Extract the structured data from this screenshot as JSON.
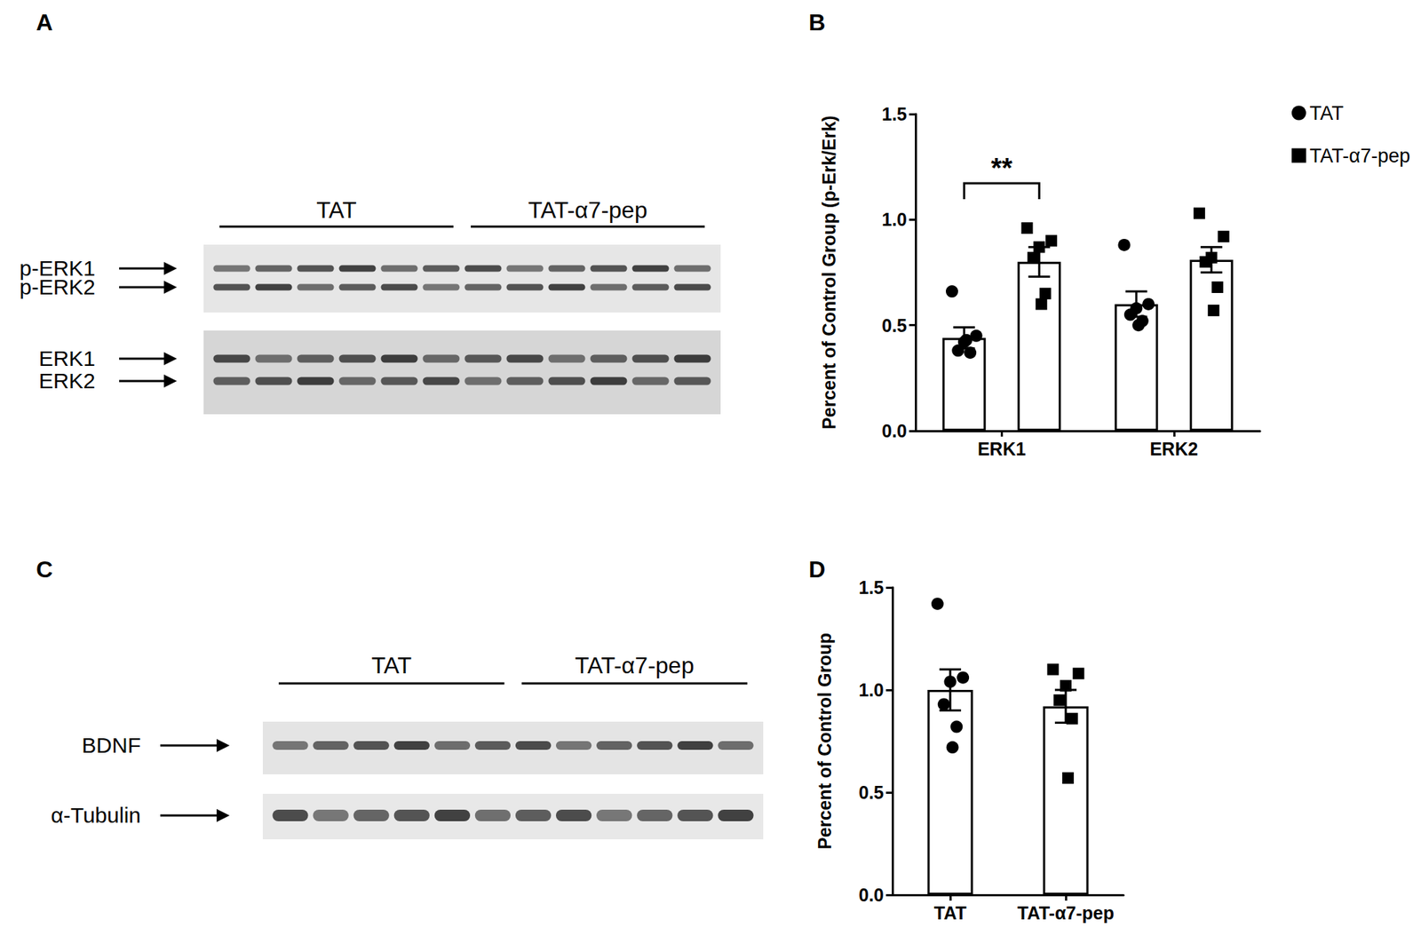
{
  "panels": [
    "A",
    "B",
    "C",
    "D"
  ],
  "blots": [
    {
      "groups": [
        "TAT",
        "TAT-α7-pep"
      ],
      "lanes": 6,
      "strips": [
        {
          "bands": [
            "p-ERK1",
            "p-ERK2"
          ]
        },
        {
          "bands": [
            "ERK1",
            "ERK2"
          ]
        }
      ]
    },
    {
      "groups": [
        "TAT",
        "TAT-α7-pep"
      ],
      "lanes": 6,
      "strips": [
        {
          "bands": [
            "BDNF"
          ]
        },
        {
          "bands": [
            "α-Tubulin"
          ]
        }
      ]
    }
  ],
  "chart_data": [
    {
      "type": "bar",
      "categories": [
        "ERK1",
        "ERK2"
      ],
      "ylabel": "Percent of Control Group (p-Erk/Erk)",
      "ylim": [
        0,
        1.5
      ],
      "yticks": [
        {
          "value": 0,
          "label": "0.0"
        },
        0.5,
        {
          "value": 1,
          "label": "1.0"
        },
        1.5
      ],
      "grid": false,
      "legend": "upper right",
      "series": [
        {
          "name": "TAT",
          "marker": "circle",
          "values": [
            0.44,
            0.6
          ],
          "errors": [
            0.05,
            0.06
          ],
          "points": [
            [
              0.66,
              0.45,
              0.42,
              0.38,
              0.37,
              0.43
            ],
            [
              0.88,
              0.6,
              0.58,
              0.55,
              0.52,
              0.5
            ]
          ]
        },
        {
          "name": "TAT-α7-pep",
          "marker": "square",
          "values": [
            0.8,
            0.81
          ],
          "errors": [
            0.07,
            0.06
          ],
          "points": [
            [
              0.96,
              0.9,
              0.87,
              0.82,
              0.65,
              0.6
            ],
            [
              1.03,
              0.92,
              0.82,
              0.8,
              0.68,
              0.57
            ]
          ]
        }
      ],
      "significance": [
        {
          "category": "ERK1",
          "label": "**"
        }
      ]
    },
    {
      "type": "bar",
      "categories": [
        "TAT",
        "TAT-α7-pep"
      ],
      "ylabel": "Percent of Control Group",
      "ylim": [
        0,
        1.5
      ],
      "yticks": [
        {
          "value": 0,
          "label": "0.0"
        },
        0.5,
        {
          "value": 1,
          "label": "1.0"
        },
        1.5
      ],
      "grid": false,
      "series": [
        {
          "name": "TAT",
          "marker": "circle",
          "values": [
            1.0,
            null
          ],
          "errors": [
            0.1,
            null
          ],
          "points": [
            [
              1.42,
              1.06,
              1.04,
              0.93,
              0.82,
              0.72
            ],
            null
          ]
        },
        {
          "name": "TAT-α7-pep",
          "marker": "square",
          "values": [
            null,
            0.92
          ],
          "errors": [
            null,
            0.08
          ],
          "points": [
            null,
            [
              1.1,
              1.08,
              1.02,
              0.95,
              0.86,
              0.57
            ]
          ]
        }
      ]
    }
  ]
}
